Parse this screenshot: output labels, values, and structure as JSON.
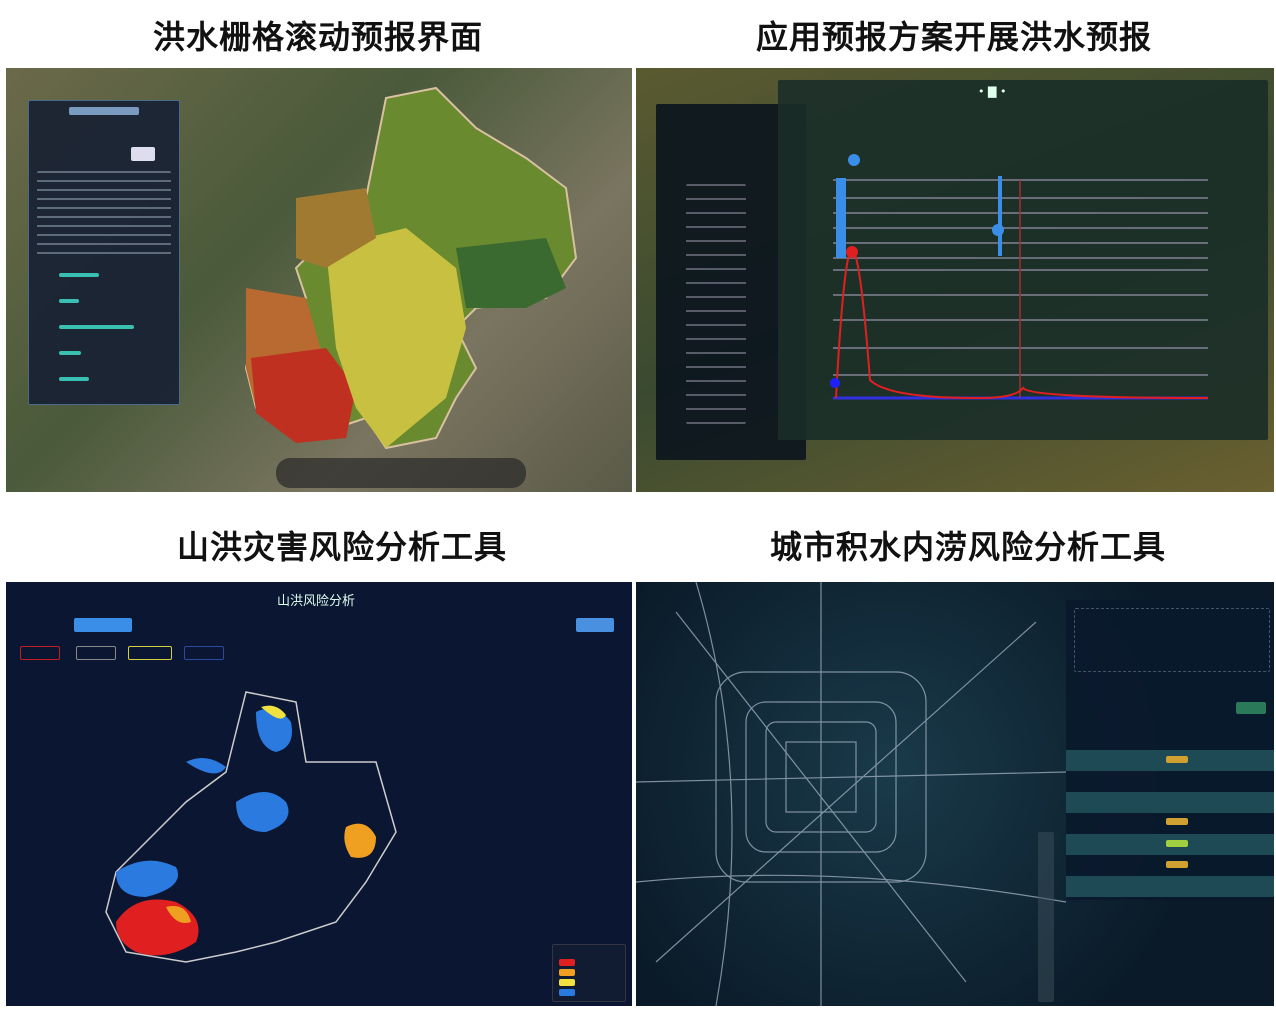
{
  "titles": {
    "top_left": "洪水栅格滚动预报界面",
    "top_right": "应用预报方案开展洪水预报",
    "bottom_left": "山洪灾害风险分析工具",
    "bottom_right": "城市积水内涝风险分析工具"
  },
  "flash_flood": {
    "header": "山洪风险分析"
  },
  "colors": {
    "high_risk": "#e02020",
    "medium_risk": "#f0a020",
    "low_risk": "#f0e040",
    "possible": "#2a7ae0",
    "dark_bg": "#0b1633",
    "forecast_line": "#e02020",
    "observed_bar": "#3a8ee8"
  },
  "icons": [
    "globe-logo-icon",
    "map-pin-icon",
    "tool-bar-icons",
    "zoom-control-icons"
  ]
}
